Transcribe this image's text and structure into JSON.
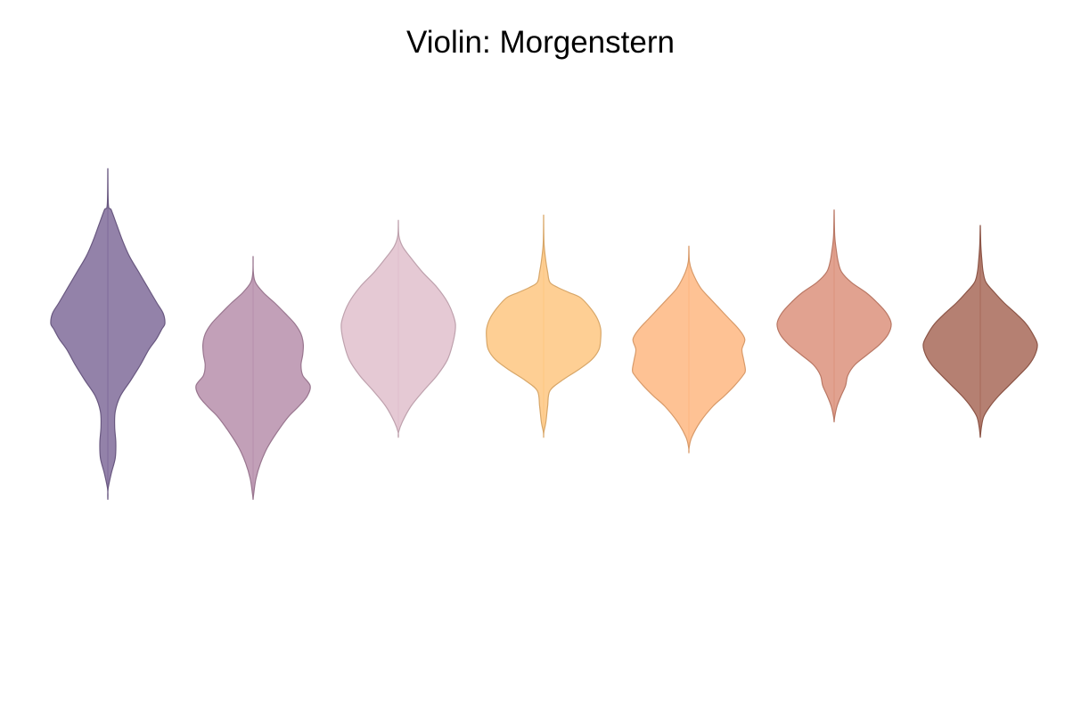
{
  "chart_data": {
    "type": "violin",
    "title": "Violin: Morgenstern",
    "xlabel": "",
    "ylabel": "",
    "ylim": [
      0,
      100
    ],
    "grid": false,
    "legend": "none",
    "series": [
      {
        "color": "#7b6796",
        "profile": [
          [
            22,
            0
          ],
          [
            24,
            0.004
          ],
          [
            27,
            0.06
          ],
          [
            30,
            0.13
          ],
          [
            33,
            0.14
          ],
          [
            36,
            0.12
          ],
          [
            39,
            0.13
          ],
          [
            42,
            0.22
          ],
          [
            45,
            0.4
          ],
          [
            48,
            0.57
          ],
          [
            51,
            0.72
          ],
          [
            53,
            0.85
          ],
          [
            55,
            0.95
          ],
          [
            56,
            1.0
          ],
          [
            58,
            0.97
          ],
          [
            60,
            0.86
          ],
          [
            63,
            0.7
          ],
          [
            66,
            0.54
          ],
          [
            69,
            0.38
          ],
          [
            72,
            0.26
          ],
          [
            75,
            0.16
          ],
          [
            78,
            0.06
          ],
          [
            79,
            0.01
          ],
          [
            86,
            0
          ]
        ]
      },
      {
        "color": "#b48ba8",
        "profile": [
          [
            22,
            0
          ],
          [
            23,
            0.01
          ],
          [
            26,
            0.05
          ],
          [
            29,
            0.13
          ],
          [
            32,
            0.25
          ],
          [
            35,
            0.42
          ],
          [
            38,
            0.62
          ],
          [
            40,
            0.8
          ],
          [
            42,
            0.95
          ],
          [
            44,
            1.0
          ],
          [
            46,
            0.87
          ],
          [
            48,
            0.84
          ],
          [
            50,
            0.87
          ],
          [
            52,
            0.88
          ],
          [
            54,
            0.84
          ],
          [
            56,
            0.73
          ],
          [
            58,
            0.56
          ],
          [
            60,
            0.38
          ],
          [
            62,
            0.18
          ],
          [
            64,
            0.04
          ],
          [
            66,
            0.004
          ],
          [
            69,
            0
          ]
        ]
      },
      {
        "color": "#dfbdcb",
        "profile": [
          [
            34,
            0
          ],
          [
            35,
            0.004
          ],
          [
            37,
            0.07
          ],
          [
            40,
            0.22
          ],
          [
            43,
            0.44
          ],
          [
            46,
            0.68
          ],
          [
            49,
            0.86
          ],
          [
            52,
            0.95
          ],
          [
            55,
            1.0
          ],
          [
            57,
            0.98
          ],
          [
            60,
            0.87
          ],
          [
            63,
            0.68
          ],
          [
            66,
            0.42
          ],
          [
            69,
            0.2
          ],
          [
            71,
            0.07
          ],
          [
            73,
            0.01
          ],
          [
            76,
            0
          ]
        ]
      },
      {
        "color": "#fec57c",
        "profile": [
          [
            34,
            0
          ],
          [
            35,
            0.004
          ],
          [
            37,
            0.04
          ],
          [
            40,
            0.07
          ],
          [
            43,
            0.11
          ],
          [
            45,
            0.32
          ],
          [
            47,
            0.6
          ],
          [
            49,
            0.84
          ],
          [
            51,
            0.97
          ],
          [
            53,
            1.0
          ],
          [
            55,
            1.0
          ],
          [
            57,
            0.94
          ],
          [
            59,
            0.82
          ],
          [
            61,
            0.65
          ],
          [
            62,
            0.45
          ],
          [
            63,
            0.25
          ],
          [
            64,
            0.11
          ],
          [
            66,
            0.07
          ],
          [
            68,
            0.04
          ],
          [
            71,
            0.01
          ],
          [
            74,
            0.002
          ],
          [
            77,
            0
          ]
        ]
      },
      {
        "color": "#feb57c",
        "profile": [
          [
            31,
            0
          ],
          [
            32,
            0.004
          ],
          [
            34,
            0.05
          ],
          [
            37,
            0.2
          ],
          [
            40,
            0.42
          ],
          [
            42,
            0.62
          ],
          [
            44,
            0.8
          ],
          [
            46,
            0.95
          ],
          [
            47,
            0.99
          ],
          [
            49,
            0.96
          ],
          [
            51,
            0.93
          ],
          [
            53,
            0.98
          ],
          [
            55,
            0.87
          ],
          [
            57,
            0.7
          ],
          [
            59,
            0.53
          ],
          [
            61,
            0.36
          ],
          [
            63,
            0.2
          ],
          [
            66,
            0.06
          ],
          [
            68,
            0.01
          ],
          [
            71,
            0
          ]
        ]
      },
      {
        "color": "#da8d77",
        "profile": [
          [
            37,
            0
          ],
          [
            38,
            0.01
          ],
          [
            40,
            0.05
          ],
          [
            42,
            0.12
          ],
          [
            44,
            0.2
          ],
          [
            46,
            0.24
          ],
          [
            48,
            0.36
          ],
          [
            50,
            0.58
          ],
          [
            52,
            0.8
          ],
          [
            54,
            0.95
          ],
          [
            56,
            1.0
          ],
          [
            58,
            0.92
          ],
          [
            60,
            0.76
          ],
          [
            62,
            0.56
          ],
          [
            64,
            0.3
          ],
          [
            66,
            0.13
          ],
          [
            68,
            0.07
          ],
          [
            70,
            0.04
          ],
          [
            73,
            0.01
          ],
          [
            78,
            0
          ]
        ]
      },
      {
        "color": "#a56453",
        "profile": [
          [
            34,
            0
          ],
          [
            36,
            0.02
          ],
          [
            38,
            0.06
          ],
          [
            40,
            0.17
          ],
          [
            42,
            0.32
          ],
          [
            44,
            0.5
          ],
          [
            46,
            0.68
          ],
          [
            48,
            0.85
          ],
          [
            50,
            0.96
          ],
          [
            52,
            1.0
          ],
          [
            54,
            0.92
          ],
          [
            56,
            0.8
          ],
          [
            58,
            0.62
          ],
          [
            60,
            0.42
          ],
          [
            62,
            0.25
          ],
          [
            64,
            0.1
          ],
          [
            66,
            0.05
          ],
          [
            68,
            0.03
          ],
          [
            71,
            0.01
          ],
          [
            75,
            0
          ]
        ]
      }
    ]
  }
}
